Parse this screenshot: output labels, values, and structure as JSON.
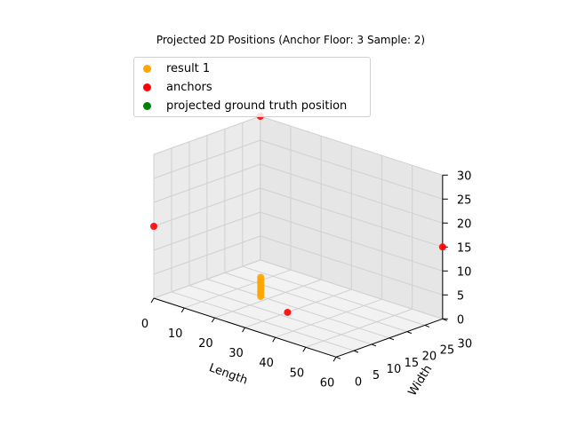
{
  "chart_data": {
    "type": "scatter",
    "title": "Projected 2D Positions (Anchor Floor: 3 Sample: 2)",
    "xlabel": "Length",
    "ylabel": "Width",
    "zlabel": "",
    "xlim": [
      0,
      60
    ],
    "ylim": [
      0,
      30
    ],
    "zlim": [
      0,
      30
    ],
    "xticks": [
      "0",
      "10",
      "20",
      "30",
      "40",
      "50",
      "60"
    ],
    "yticks": [
      "0",
      "5",
      "10",
      "15",
      "20",
      "25",
      "30"
    ],
    "zticks": [
      "0",
      "5",
      "10",
      "15",
      "20",
      "25",
      "30"
    ],
    "grid": true,
    "legend_position": "upper-left",
    "series": [
      {
        "name": "result 1",
        "color": "#ffa500",
        "points": [
          {
            "x": 20,
            "y": 13,
            "z": 1
          },
          {
            "x": 20,
            "y": 13,
            "z": 1.5
          },
          {
            "x": 20,
            "y": 13,
            "z": 2
          },
          {
            "x": 20,
            "y": 13,
            "z": 2.5
          },
          {
            "x": 20,
            "y": 13,
            "z": 3
          },
          {
            "x": 20,
            "y": 13,
            "z": 3.5
          },
          {
            "x": 20,
            "y": 13,
            "z": 4
          },
          {
            "x": 20,
            "y": 13,
            "z": 4.5
          },
          {
            "x": 20,
            "y": 13,
            "z": 5
          }
        ]
      },
      {
        "name": "anchors",
        "color": "#ff0000",
        "points": [
          {
            "x": 0,
            "y": 0,
            "z": 15
          },
          {
            "x": 30,
            "y": 12,
            "z": 0
          },
          {
            "x": 0,
            "y": 30,
            "z": 30
          },
          {
            "x": 60,
            "y": 30,
            "z": 15
          }
        ]
      },
      {
        "name": "projected ground truth position",
        "color": "#008000",
        "points": []
      }
    ]
  }
}
